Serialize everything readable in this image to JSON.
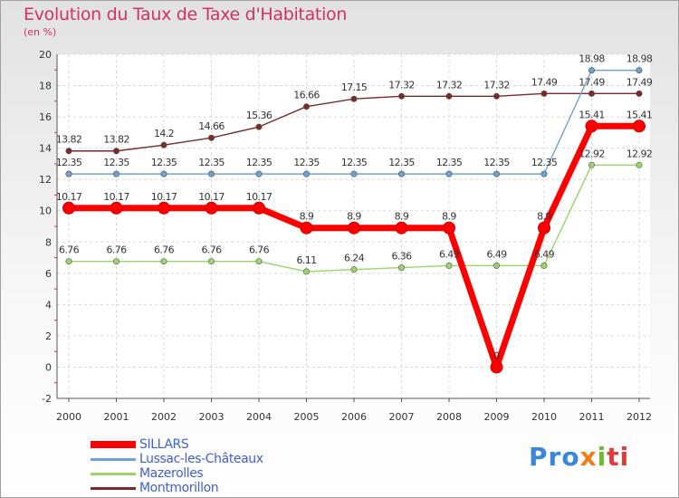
{
  "chart_data": {
    "type": "line",
    "title": "Evolution du Taux de Taxe d'Habitation",
    "subtitle": "(en %)",
    "xlabel": "",
    "ylabel": "",
    "ylim": [
      -2,
      20
    ],
    "yticks": [
      -2,
      0,
      2,
      4,
      6,
      8,
      10,
      12,
      14,
      16,
      18,
      20
    ],
    "grid": true,
    "legend_position": "bottom-left",
    "categories": [
      "2000",
      "2001",
      "2002",
      "2003",
      "2004",
      "2005",
      "2006",
      "2007",
      "2008",
      "2009",
      "2010",
      "2011",
      "2012"
    ],
    "series": [
      {
        "name": "SILLARS",
        "color": "#ff0000",
        "width": 7,
        "values": [
          10.17,
          10.17,
          10.17,
          10.17,
          10.17,
          8.9,
          8.9,
          8.9,
          8.9,
          0,
          8.9,
          15.41,
          15.41
        ],
        "labels": [
          "10.17",
          "10.17",
          "10.17",
          "10.17",
          "10.17",
          "8.9",
          "8.9",
          "8.9",
          "8.9",
          "0",
          "8.9",
          "15.41",
          "15.41"
        ]
      },
      {
        "name": "Lussac-les-Châteaux",
        "color": "#6ea2d4",
        "width": 1.4,
        "values": [
          12.35,
          12.35,
          12.35,
          12.35,
          12.35,
          12.35,
          12.35,
          12.35,
          12.35,
          12.35,
          12.35,
          18.98,
          18.98
        ],
        "labels": [
          "12.35",
          "12.35",
          "12.35",
          "12.35",
          "12.35",
          "12.35",
          "12.35",
          "12.35",
          "12.35",
          "12.35",
          "12.35",
          "18.98",
          "18.98"
        ]
      },
      {
        "name": "Mazerolles",
        "color": "#9ad46a",
        "width": 1.4,
        "values": [
          6.76,
          6.76,
          6.76,
          6.76,
          6.76,
          6.11,
          6.24,
          6.36,
          6.49,
          6.49,
          6.49,
          12.92,
          12.92
        ],
        "labels": [
          "6.76",
          "6.76",
          "6.76",
          "6.76",
          "6.76",
          "6.11",
          "6.24",
          "6.36",
          "6.49",
          "6.49",
          "6.49",
          "12.92",
          "12.92"
        ]
      },
      {
        "name": "Montmorillon",
        "color": "#7a2a2a",
        "width": 1.4,
        "values": [
          13.82,
          13.82,
          14.2,
          14.66,
          15.36,
          16.66,
          17.15,
          17.32,
          17.32,
          17.32,
          17.49,
          17.49,
          17.49
        ],
        "labels": [
          "13.82",
          "13.82",
          "14.2",
          "14.66",
          "15.36",
          "16.66",
          "17.15",
          "17.32",
          "17.32",
          "17.32",
          "17.49",
          "17.49",
          "17.49"
        ]
      }
    ]
  },
  "logo": {
    "p1": "Pro",
    "p2": "x",
    "p3": "i",
    "p4": "ti"
  }
}
